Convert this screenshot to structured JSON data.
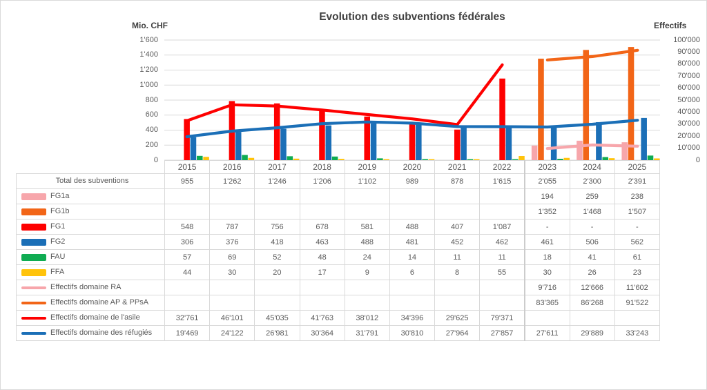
{
  "title": "Evolution des subventions fédérales",
  "left_axis": {
    "title": "Mio. CHF",
    "labels": [
      "1'600",
      "1'400",
      "1'200",
      "1'000",
      "800",
      "600",
      "400",
      "200",
      "0"
    ],
    "min": 0,
    "max": 1600,
    "step": 200
  },
  "right_axis": {
    "title": "Effectifs",
    "labels": [
      "100'000",
      "90'000",
      "80'000",
      "70'000",
      "60'000",
      "50'000",
      "40'000",
      "30'000",
      "20'000",
      "10'000",
      "0"
    ],
    "min": 0,
    "max": 100000,
    "step": 10000
  },
  "colors": {
    "pink": "#F7A6AB",
    "orange": "#F26517",
    "red": "#FE0000",
    "blue": "#1B6FB7",
    "green": "#0FAC52",
    "yellow": "#FFC30B",
    "gridline": "#d9d9d9",
    "text": "#595959",
    "title": "#404040"
  },
  "chart_data": {
    "type": "bar+line",
    "title": "Evolution des subventions fédérales",
    "categories": [
      "2015",
      "2016",
      "2017",
      "2018",
      "2019",
      "2020",
      "2021",
      "2022",
      "2023",
      "2024",
      "2025"
    ],
    "left_ylabel": "Mio. CHF",
    "right_ylabel": "Effectifs",
    "left_ylim": [
      0,
      1600
    ],
    "right_ylim": [
      0,
      100000
    ],
    "grid": "horizontal",
    "legend_position": "data-table-left-column",
    "totals": {
      "name": "Total des subventions",
      "values": [
        955,
        1262,
        1246,
        1206,
        1102,
        989,
        878,
        1615,
        2055,
        2300,
        2391
      ]
    },
    "bar_series": [
      {
        "name": "FG1a",
        "color": "pink",
        "slot": 1,
        "axis": "left",
        "values": [
          null,
          null,
          null,
          null,
          null,
          null,
          null,
          null,
          194,
          259,
          238
        ]
      },
      {
        "name": "FG1b",
        "color": "orange",
        "slot": 2,
        "axis": "left",
        "values": [
          null,
          null,
          null,
          null,
          null,
          null,
          null,
          null,
          1352,
          1468,
          1507
        ]
      },
      {
        "name": "FG1",
        "color": "red",
        "slot": 3,
        "axis": "left",
        "values": [
          548,
          787,
          756,
          678,
          581,
          488,
          407,
          1087,
          null,
          null,
          null
        ]
      },
      {
        "name": "FG2",
        "color": "blue",
        "slot": 4,
        "axis": "left",
        "values": [
          306,
          376,
          418,
          463,
          488,
          481,
          452,
          462,
          461,
          506,
          562
        ]
      },
      {
        "name": "FAU",
        "color": "green",
        "slot": 5,
        "axis": "left",
        "values": [
          57,
          69,
          52,
          48,
          24,
          14,
          11,
          11,
          18,
          41,
          61
        ]
      },
      {
        "name": "FFA",
        "color": "yellow",
        "slot": 6,
        "axis": "left",
        "values": [
          44,
          30,
          20,
          17,
          9,
          6,
          8,
          55,
          30,
          26,
          23
        ]
      }
    ],
    "line_series": [
      {
        "name": "Effectifs domaine RA",
        "color": "pink",
        "axis": "right",
        "values": [
          null,
          null,
          null,
          null,
          null,
          null,
          null,
          null,
          9716,
          12666,
          11602
        ]
      },
      {
        "name": "Effectifs domaine AP & PPsA",
        "color": "orange",
        "axis": "right",
        "values": [
          null,
          null,
          null,
          null,
          null,
          null,
          null,
          null,
          83365,
          86268,
          91522
        ]
      },
      {
        "name": "Effectifs domaine de l'asile",
        "color": "red",
        "axis": "right",
        "values": [
          32761,
          46101,
          45035,
          41763,
          38012,
          34396,
          29625,
          79371,
          null,
          null,
          null
        ]
      },
      {
        "name": "Effectifs domaine des réfugiés",
        "color": "blue",
        "axis": "right",
        "values": [
          19469,
          24122,
          26981,
          30364,
          31791,
          30810,
          27964,
          27857,
          27611,
          29889,
          33243
        ]
      }
    ]
  },
  "table": {
    "years": [
      "2015",
      "2016",
      "2017",
      "2018",
      "2019",
      "2020",
      "2021",
      "2022",
      "2023",
      "2024",
      "2025"
    ],
    "rows": [
      {
        "label": "Total des subventions",
        "swatch": "none",
        "color": "",
        "values": [
          "955",
          "1'262",
          "1'246",
          "1'206",
          "1'102",
          "989",
          "878",
          "1'615",
          "2'055",
          "2'300",
          "2'391"
        ]
      },
      {
        "label": "FG1a",
        "swatch": "bar",
        "color": "pink",
        "values": [
          "",
          "",
          "",
          "",
          "",
          "",
          "",
          "",
          "194",
          "259",
          "238"
        ]
      },
      {
        "label": "FG1b",
        "swatch": "bar",
        "color": "orange",
        "values": [
          "",
          "",
          "",
          "",
          "",
          "",
          "",
          "",
          "1'352",
          "1'468",
          "1'507"
        ]
      },
      {
        "label": "FG1",
        "swatch": "bar",
        "color": "red",
        "values": [
          "548",
          "787",
          "756",
          "678",
          "581",
          "488",
          "407",
          "1'087",
          "-",
          "-",
          "-"
        ]
      },
      {
        "label": "FG2",
        "swatch": "bar",
        "color": "blue",
        "values": [
          "306",
          "376",
          "418",
          "463",
          "488",
          "481",
          "452",
          "462",
          "461",
          "506",
          "562"
        ]
      },
      {
        "label": "FAU",
        "swatch": "bar",
        "color": "green",
        "values": [
          "57",
          "69",
          "52",
          "48",
          "24",
          "14",
          "11",
          "11",
          "18",
          "41",
          "61"
        ]
      },
      {
        "label": "FFA",
        "swatch": "bar",
        "color": "yellow",
        "values": [
          "44",
          "30",
          "20",
          "17",
          "9",
          "6",
          "8",
          "55",
          "30",
          "26",
          "23"
        ]
      },
      {
        "label": "Effectifs domaine RA",
        "swatch": "line",
        "color": "pink",
        "values": [
          "",
          "",
          "",
          "",
          "",
          "",
          "",
          "",
          "9'716",
          "12'666",
          "11'602"
        ]
      },
      {
        "label": "Effectifs domaine AP & PPsA",
        "swatch": "line",
        "color": "orange",
        "values": [
          "",
          "",
          "",
          "",
          "",
          "",
          "",
          "",
          "83'365",
          "86'268",
          "91'522"
        ]
      },
      {
        "label": "Effectifs domaine de l'asile",
        "swatch": "line",
        "color": "red",
        "values": [
          "32'761",
          "46'101",
          "45'035",
          "41'763",
          "38'012",
          "34'396",
          "29'625",
          "79'371",
          "",
          "",
          ""
        ]
      },
      {
        "label": "Effectifs domaine des réfugiés",
        "swatch": "line",
        "color": "blue",
        "values": [
          "19'469",
          "24'122",
          "26'981",
          "30'364",
          "31'791",
          "30'810",
          "27'964",
          "27'857",
          "27'611",
          "29'889",
          "33'243"
        ]
      }
    ]
  }
}
